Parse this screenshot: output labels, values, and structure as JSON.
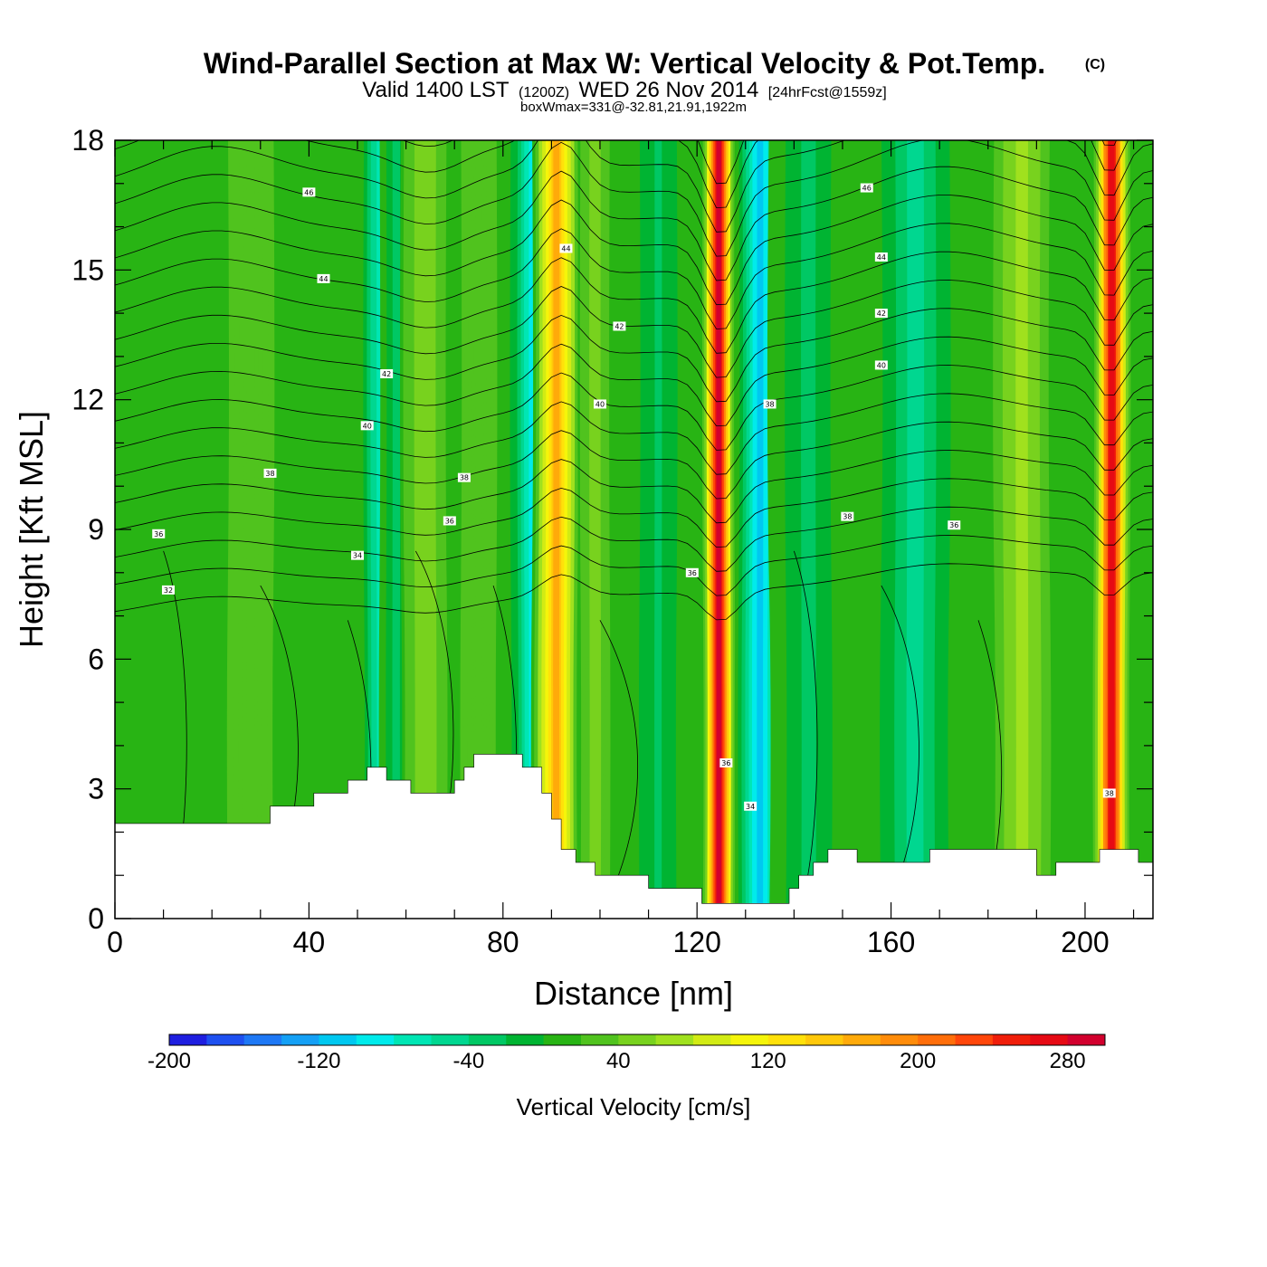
{
  "header": {
    "title": "Wind-Parallel Section at Max W: Vertical Velocity & Pot.Temp.",
    "copyright": "(C)",
    "valid_prefix": "Valid 1400 LST",
    "valid_utc": "(1200Z)",
    "valid_date": "WED 26 Nov 2014",
    "forecast": "[24hrFcst@1559z]",
    "boxwmax": "boxWmax=331@-32.81,21.91,1922m"
  },
  "colorbar": {
    "label": "Vertical Velocity [cm/s]",
    "min": -200,
    "step": 20,
    "ticks": [
      "-200",
      "-120",
      "-40",
      "40",
      "120",
      "200",
      "280"
    ],
    "colors": [
      "#1e1ee0",
      "#1e50f0",
      "#1e78f5",
      "#14a0f5",
      "#00c8f0",
      "#00ebeb",
      "#00e6b4",
      "#00d790",
      "#00c864",
      "#00b432",
      "#28b414",
      "#50c31e",
      "#78d21e",
      "#a0e11e",
      "#d2eb14",
      "#f5f50a",
      "#ffe10a",
      "#ffc80a",
      "#ffaa0a",
      "#ff8c0a",
      "#ff6e0a",
      "#ff460a",
      "#f01e0a",
      "#e60a14",
      "#d2002d"
    ]
  },
  "chart_data": {
    "type": "heatmap",
    "title": "Wind-Parallel Section at Max W: Vertical Velocity & Pot.Temp.",
    "xlabel": "Distance [nm]",
    "ylabel": "Height [Kft MSL]",
    "xlim": [
      0,
      214
    ],
    "ylim": [
      0,
      18
    ],
    "x_ticks": [
      "0",
      "40",
      "80",
      "120",
      "160",
      "200"
    ],
    "y_ticks": [
      "0",
      "3",
      "6",
      "9",
      "12",
      "15",
      "18"
    ],
    "background_w": 15,
    "w_columns": [
      {
        "x": 9,
        "w": 10,
        "width": 5
      },
      {
        "x": 28,
        "w": 28,
        "width": 5
      },
      {
        "x": 55,
        "w": -85,
        "width": 3
      },
      {
        "x": 58,
        "w": -30,
        "width": 2
      },
      {
        "x": 64,
        "w": 60,
        "width": 3
      },
      {
        "x": 75,
        "w": 40,
        "width": 3
      },
      {
        "x": 86,
        "w": -95,
        "width": 3
      },
      {
        "x": 91,
        "w": 175,
        "width": 3
      },
      {
        "x": 99,
        "w": 55,
        "width": 2
      },
      {
        "x": 112,
        "w": -25,
        "width": 4
      },
      {
        "x": 124.5,
        "w": 300,
        "width": 1.9
      },
      {
        "x": 133,
        "w": -120,
        "width": 3
      },
      {
        "x": 143,
        "w": -30,
        "width": 5
      },
      {
        "x": 165,
        "w": -55,
        "width": 6
      },
      {
        "x": 187,
        "w": 75,
        "width": 4
      },
      {
        "x": 205.5,
        "w": 290,
        "width": 2.2
      }
    ],
    "terrain": [
      [
        0,
        2.2
      ],
      [
        32,
        2.2
      ],
      [
        32,
        2.6
      ],
      [
        41,
        2.6
      ],
      [
        41,
        2.9
      ],
      [
        48,
        2.9
      ],
      [
        48,
        3.2
      ],
      [
        52,
        3.2
      ],
      [
        52,
        3.5
      ],
      [
        56,
        3.5
      ],
      [
        56,
        3.2
      ],
      [
        61,
        3.2
      ],
      [
        61,
        2.9
      ],
      [
        70,
        2.9
      ],
      [
        70,
        3.2
      ],
      [
        72,
        3.2
      ],
      [
        72,
        3.5
      ],
      [
        74,
        3.5
      ],
      [
        74,
        3.8
      ],
      [
        84,
        3.8
      ],
      [
        84,
        3.5
      ],
      [
        88,
        3.5
      ],
      [
        88,
        2.9
      ],
      [
        90,
        2.9
      ],
      [
        90,
        2.3
      ],
      [
        92,
        2.3
      ],
      [
        92,
        1.6
      ],
      [
        95,
        1.6
      ],
      [
        95,
        1.3
      ],
      [
        99,
        1.3
      ],
      [
        99,
        1.0
      ],
      [
        110,
        1.0
      ],
      [
        110,
        0.7
      ],
      [
        121,
        0.7
      ],
      [
        121,
        0.35
      ],
      [
        139,
        0.35
      ],
      [
        139,
        0.7
      ],
      [
        141,
        0.7
      ],
      [
        141,
        1.0
      ],
      [
        144,
        1.0
      ],
      [
        144,
        1.3
      ],
      [
        147,
        1.3
      ],
      [
        147,
        1.6
      ],
      [
        153,
        1.6
      ],
      [
        153,
        1.3
      ],
      [
        168,
        1.3
      ],
      [
        168,
        1.6
      ],
      [
        190,
        1.6
      ],
      [
        190,
        1.0
      ],
      [
        194,
        1.0
      ],
      [
        194,
        1.3
      ],
      [
        203,
        1.3
      ],
      [
        203,
        1.6
      ],
      [
        211,
        1.6
      ],
      [
        211,
        1.3
      ],
      [
        214,
        1.3
      ]
    ],
    "theta_levels": [
      32,
      34,
      36,
      38,
      40,
      42,
      44,
      46
    ],
    "contour_labels": [
      {
        "text": "46",
        "x": 40,
        "y": 16.8
      },
      {
        "text": "44",
        "x": 43,
        "y": 14.8
      },
      {
        "text": "42",
        "x": 56,
        "y": 12.6
      },
      {
        "text": "40",
        "x": 52,
        "y": 11.4
      },
      {
        "text": "38",
        "x": 32,
        "y": 10.3
      },
      {
        "text": "36",
        "x": 9,
        "y": 8.9
      },
      {
        "text": "32",
        "x": 11,
        "y": 7.6
      },
      {
        "text": "34",
        "x": 50,
        "y": 8.4
      },
      {
        "text": "38",
        "x": 72,
        "y": 10.2
      },
      {
        "text": "36",
        "x": 69,
        "y": 9.2
      },
      {
        "text": "44",
        "x": 93,
        "y": 15.5
      },
      {
        "text": "42",
        "x": 104,
        "y": 13.7
      },
      {
        "text": "40",
        "x": 100,
        "y": 11.9
      },
      {
        "text": "36",
        "x": 119,
        "y": 8.0
      },
      {
        "text": "36",
        "x": 126,
        "y": 3.6
      },
      {
        "text": "34",
        "x": 131,
        "y": 2.6
      },
      {
        "text": "38",
        "x": 135,
        "y": 11.9
      },
      {
        "text": "46",
        "x": 155,
        "y": 16.9
      },
      {
        "text": "44",
        "x": 158,
        "y": 15.3
      },
      {
        "text": "42",
        "x": 158,
        "y": 14.0
      },
      {
        "text": "40",
        "x": 158,
        "y": 12.8
      },
      {
        "text": "38",
        "x": 151,
        "y": 9.3
      },
      {
        "text": "36",
        "x": 173,
        "y": 9.1
      },
      {
        "text": "38",
        "x": 205,
        "y": 2.9
      }
    ]
  }
}
